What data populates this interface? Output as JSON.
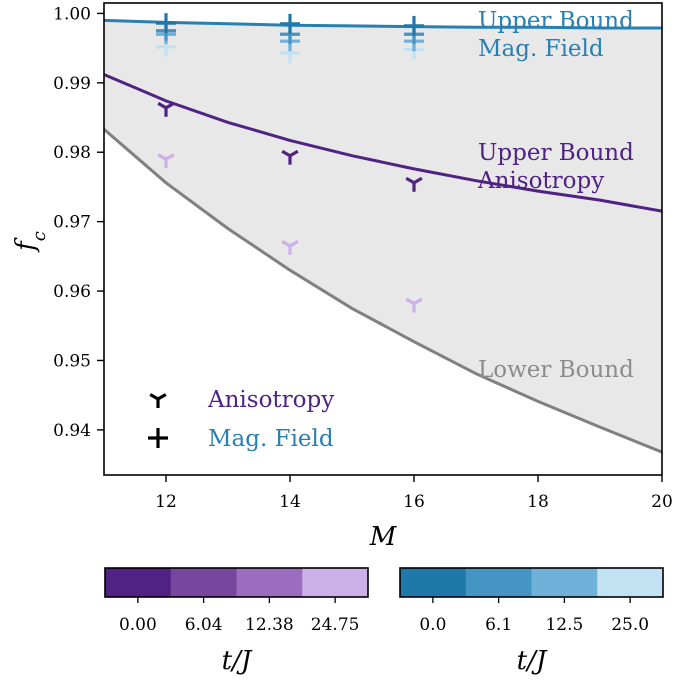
{
  "chart_data": {
    "type": "scatter",
    "xlabel": "M",
    "ylabel": "f_c",
    "xlim": [
      11,
      20
    ],
    "ylim": [
      0.9335,
      1.0015
    ],
    "xticks": [
      12,
      14,
      16,
      18,
      20
    ],
    "yticks": [
      0.94,
      0.95,
      0.96,
      0.97,
      0.98,
      0.99,
      1.0
    ],
    "ytick_labels": [
      "0.94",
      "0.95",
      "0.96",
      "0.97",
      "0.98",
      "0.99",
      "1.00"
    ],
    "colors": {
      "mag": "#2a7fb0",
      "aniso": "#4f2283",
      "lower": "#808080",
      "fill": "#e8e8e8"
    },
    "curves": {
      "upper_mag": {
        "label_lines": [
          "Upper Bound",
          "Mag. Field"
        ],
        "x": [
          11,
          12,
          13,
          14,
          15,
          16,
          17,
          18,
          19,
          20
        ],
        "y": [
          0.999,
          0.9987,
          0.9985,
          0.9983,
          0.9982,
          0.9981,
          0.998,
          0.998,
          0.9979,
          0.9979
        ]
      },
      "upper_aniso": {
        "label_lines": [
          "Upper Bound",
          "Anisotropy"
        ],
        "x": [
          11,
          12,
          13,
          14,
          15,
          16,
          17,
          18,
          19,
          20
        ],
        "y": [
          0.9912,
          0.9874,
          0.9843,
          0.9817,
          0.9795,
          0.9776,
          0.9759,
          0.9744,
          0.9731,
          0.9715
        ]
      },
      "lower": {
        "label_lines": [
          "Lower Bound"
        ],
        "x": [
          11,
          12,
          13,
          14,
          15,
          16,
          17,
          18,
          19,
          20
        ],
        "y": [
          0.9833,
          0.9756,
          0.969,
          0.963,
          0.9575,
          0.9527,
          0.9481,
          0.9441,
          0.9404,
          0.9368
        ]
      }
    },
    "series": [
      {
        "name": "Anisotropy",
        "marker": "tri",
        "points": [
          {
            "x": 12,
            "y": 0.9864,
            "t": 0.0
          },
          {
            "x": 12,
            "y": 0.979,
            "t": 24.75
          },
          {
            "x": 14,
            "y": 0.9795,
            "t": 0.0
          },
          {
            "x": 14,
            "y": 0.9665,
            "t": 24.75
          },
          {
            "x": 16,
            "y": 0.9756,
            "t": 0.0
          },
          {
            "x": 16,
            "y": 0.9582,
            "t": 24.75
          }
        ]
      },
      {
        "name": "Mag. Field",
        "marker": "plus",
        "points": [
          {
            "x": 12,
            "y": 0.9986,
            "t": 0.0
          },
          {
            "x": 12,
            "y": 0.9975,
            "t": 6.1
          },
          {
            "x": 12,
            "y": 0.997,
            "t": 12.5
          },
          {
            "x": 12,
            "y": 0.9952,
            "t": 25.0
          },
          {
            "x": 14,
            "y": 0.9985,
            "t": 0.0
          },
          {
            "x": 14,
            "y": 0.997,
            "t": 6.1
          },
          {
            "x": 14,
            "y": 0.996,
            "t": 12.5
          },
          {
            "x": 14,
            "y": 0.9943,
            "t": 25.0
          },
          {
            "x": 16,
            "y": 0.9982,
            "t": 0.0
          },
          {
            "x": 16,
            "y": 0.997,
            "t": 6.1
          },
          {
            "x": 16,
            "y": 0.996,
            "t": 12.5
          },
          {
            "x": 16,
            "y": 0.9948,
            "t": 25.0
          }
        ]
      }
    ],
    "legend": {
      "placement": "lower-left",
      "entries": [
        {
          "marker": "tri",
          "label": "Anisotropy",
          "color": "#4f2283"
        },
        {
          "marker": "plus",
          "label": "Mag. Field",
          "color": "#2a7fb0"
        }
      ]
    },
    "colorbars": [
      {
        "label": "t/J",
        "colors": [
          "#4f2283",
          "#76479d",
          "#9a6dbe",
          "#cdb0e8"
        ],
        "tick_labels": [
          "0.00",
          "6.04",
          "12.38",
          "24.75"
        ]
      },
      {
        "label": "t/J",
        "colors": [
          "#1f78aa",
          "#4494c4",
          "#6fb1d8",
          "#c2e2f4"
        ],
        "tick_labels": [
          "0.0",
          "6.1",
          "12.5",
          "25.0"
        ]
      }
    ]
  }
}
